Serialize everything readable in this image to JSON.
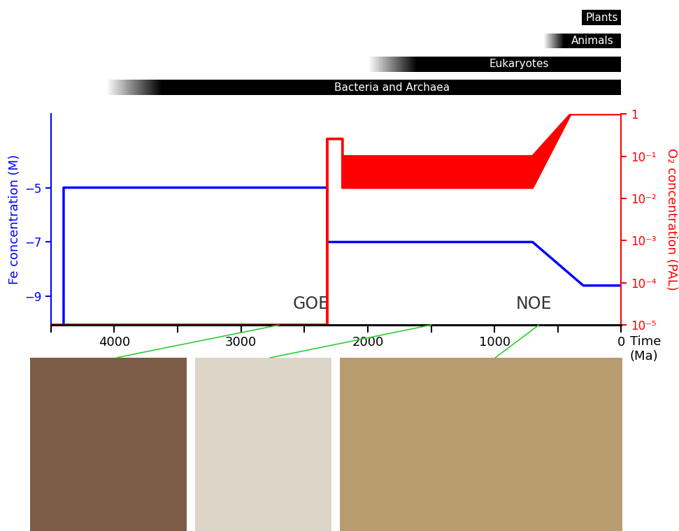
{
  "chart_data": {
    "type": "line",
    "xlim": [
      4500,
      0
    ],
    "xticks": [
      {
        "value": 4500,
        "label": null
      },
      4000,
      {
        "value": 3500,
        "label": null
      },
      3000,
      {
        "value": 2500,
        "label": null
      },
      2000,
      {
        "value": 1500,
        "label": null
      },
      1000,
      {
        "value": 500,
        "label": null
      },
      0
    ],
    "xlabel": "Time\n(Ma)",
    "ylabel": "Fe concentration (M)",
    "ylim": [
      -10.05,
      -2.3
    ],
    "yticks": [
      {
        "value": -5,
        "label": "−5"
      },
      {
        "value": -7,
        "label": "−7"
      },
      {
        "value": -9,
        "label": "−9"
      }
    ],
    "y2label": "O₂ concentration (PAL)",
    "y2lim": [
      1e-05,
      1
    ],
    "y2ticks": [
      1,
      {
        "value": 0.1,
        "label": "10⁻¹"
      },
      {
        "value": 0.01,
        "label": "10⁻²"
      },
      {
        "value": 0.001,
        "label": "10⁻³"
      },
      {
        "value": 0.0001,
        "label": "10⁻⁴"
      },
      {
        "value": 1e-05,
        "label": "10⁻⁵"
      }
    ],
    "series": [
      {
        "color": "#0000ff",
        "x": [
          4400,
          4400,
          2320,
          2320,
          700,
          300,
          0
        ],
        "values": [
          -10.05,
          -5,
          -5,
          -7,
          -7,
          -8.6,
          -8.6
        ]
      },
      {
        "axis": "y2",
        "log": true,
        "color": "#ff0000",
        "x": [
          4500,
          2320,
          2320,
          2200,
          2200,
          700,
          400,
          0
        ],
        "low": [
          1e-05,
          1e-05,
          0.26,
          0.26,
          0.018,
          0.018,
          1,
          1
        ],
        "high": [
          1e-05,
          1e-05,
          0.26,
          0.26,
          0.1,
          0.1,
          1,
          1
        ]
      }
    ],
    "annotations": [
      {
        "text": "GOE",
        "x": 2450
      },
      {
        "text": "NOE",
        "x": 690
      }
    ],
    "ranges": [
      {
        "label": "Plants",
        "start": 310,
        "full": 310
      },
      {
        "label": "Animals",
        "start": 610,
        "full": 450
      },
      {
        "label": "Eukaryotes",
        "start": 1990,
        "full": 1610
      },
      {
        "label": "Bacteria and Archaea",
        "start": 4060,
        "full": 3620
      }
    ],
    "images": [
      {
        "time": 2700
      },
      {
        "time": 1500
      },
      {
        "time": 650
      }
    ]
  }
}
